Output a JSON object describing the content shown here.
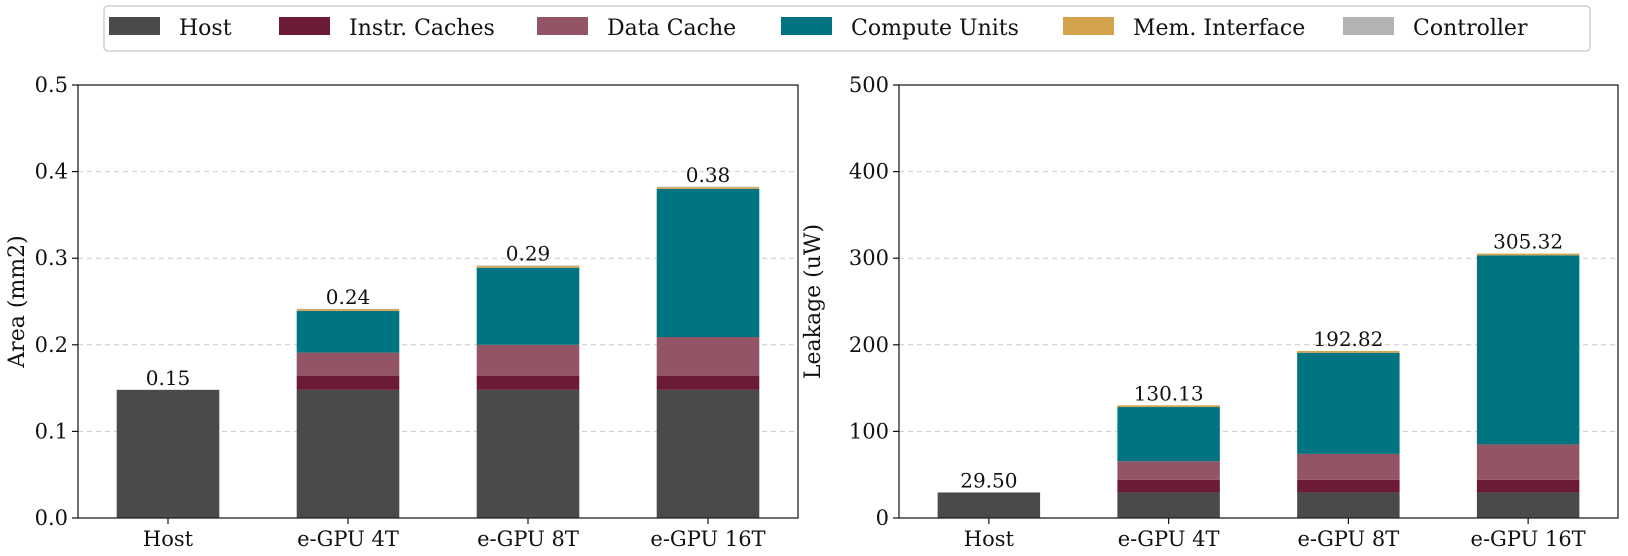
{
  "legend": [
    {
      "name": "Host",
      "color": "#4a4a4a"
    },
    {
      "name": "Instr. Caches",
      "color": "#6b1a38"
    },
    {
      "name": "Data Cache",
      "color": "#935466"
    },
    {
      "name": "Compute Units",
      "color": "#007480"
    },
    {
      "name": "Mem. Interface",
      "color": "#d4a44c"
    },
    {
      "name": "Controller",
      "color": "#b3b3b3"
    }
  ],
  "chart_data": [
    {
      "type": "bar",
      "stacked": true,
      "ylabel": "Area (mm2)",
      "xlabel": "",
      "ylim": [
        0,
        0.5
      ],
      "yticks": [
        "0.0",
        "0.1",
        "0.2",
        "0.3",
        "0.4",
        "0.5"
      ],
      "ytick_values": [
        0,
        0.1,
        0.2,
        0.3,
        0.4,
        0.5
      ],
      "grid": "y-dashed",
      "categories": [
        "Host",
        "e-GPU 4T",
        "e-GPU 8T",
        "e-GPU 16T"
      ],
      "series": [
        {
          "name": "Host",
          "values": [
            0.148,
            0.148,
            0.148,
            0.148
          ]
        },
        {
          "name": "Instr. Caches",
          "values": [
            0,
            0.016,
            0.016,
            0.016
          ]
        },
        {
          "name": "Data Cache",
          "values": [
            0,
            0.027,
            0.036,
            0.045
          ]
        },
        {
          "name": "Compute Units",
          "values": [
            0,
            0.048,
            0.089,
            0.171
          ]
        },
        {
          "name": "Mem. Interface",
          "values": [
            0,
            0.002,
            0.002,
            0.002
          ]
        },
        {
          "name": "Controller",
          "values": [
            0,
            0.0005,
            0.0005,
            0.0005
          ]
        }
      ],
      "totals": [
        "0.15",
        "0.24",
        "0.29",
        "0.38"
      ]
    },
    {
      "type": "bar",
      "stacked": true,
      "ylabel": "Leakage (uW)",
      "xlabel": "",
      "ylim": [
        0,
        500
      ],
      "yticks": [
        "0",
        "100",
        "200",
        "300",
        "400",
        "500"
      ],
      "ytick_values": [
        0,
        100,
        200,
        300,
        400,
        500
      ],
      "grid": "y-dashed",
      "categories": [
        "Host",
        "e-GPU 4T",
        "e-GPU 8T",
        "e-GPU 16T"
      ],
      "series": [
        {
          "name": "Host",
          "values": [
            29.5,
            29.5,
            29.5,
            29.5
          ]
        },
        {
          "name": "Instr. Caches",
          "values": [
            0,
            14.5,
            14.5,
            14.5
          ]
        },
        {
          "name": "Data Cache",
          "values": [
            0,
            21.5,
            30,
            41
          ]
        },
        {
          "name": "Compute Units",
          "values": [
            0,
            62.63,
            116.82,
            218.32
          ]
        },
        {
          "name": "Mem. Interface",
          "values": [
            0,
            2,
            2,
            2
          ]
        },
        {
          "name": "Controller",
          "values": [
            0,
            0,
            0,
            0
          ]
        }
      ],
      "totals": [
        "29.50",
        "130.13",
        "192.82",
        "305.32"
      ]
    }
  ]
}
